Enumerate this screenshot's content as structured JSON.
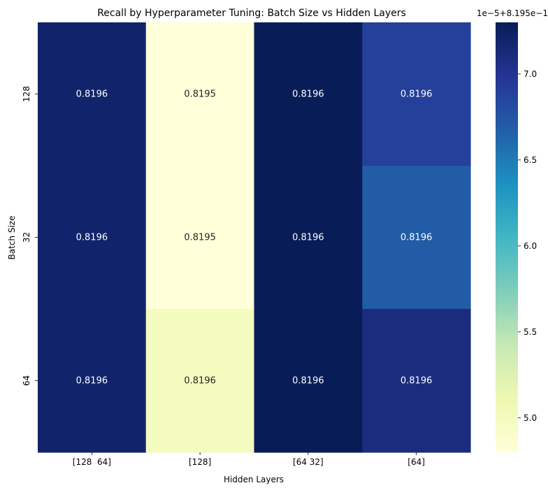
{
  "chart_data": {
    "type": "heatmap",
    "title": "Recall by Hyperparameter Tuning: Batch Size vs Hidden Layers",
    "xlabel": "Hidden Layers",
    "ylabel": "Batch Size",
    "x_categories": [
      "[128  64]",
      "[128]",
      "[64 32]",
      "[64]"
    ],
    "y_categories": [
      "128",
      "32",
      "64"
    ],
    "values": [
      [
        0.819572,
        0.819548,
        0.819573,
        0.819569
      ],
      [
        0.819572,
        0.819548,
        0.819573,
        0.819567
      ],
      [
        0.819572,
        0.81955,
        0.819573,
        0.819571
      ]
    ],
    "cell_labels": [
      [
        "0.8196",
        "0.8195",
        "0.8196",
        "0.8196"
      ],
      [
        "0.8196",
        "0.8195",
        "0.8196",
        "0.8196"
      ],
      [
        "0.8196",
        "0.8196",
        "0.8196",
        "0.8196"
      ]
    ],
    "colormap": "YlGnBu",
    "colorbar": {
      "range": [
        0.819548,
        0.819573
      ],
      "ticks": [
        5.0,
        5.5,
        6.0,
        6.5,
        7.0
      ],
      "tick_labels": [
        "5.0",
        "5.5",
        "6.0",
        "6.5",
        "7.0"
      ],
      "offset_label": "1e−5+8.195e−1"
    }
  }
}
